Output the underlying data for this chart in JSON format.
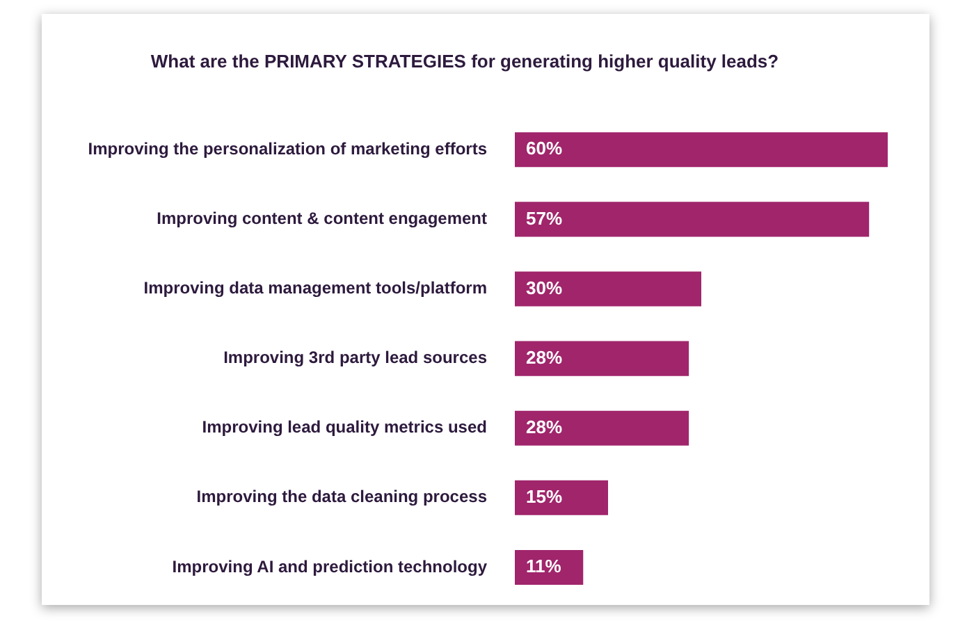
{
  "chart_data": {
    "type": "bar",
    "orientation": "horizontal",
    "title": "What are the PRIMARY STRATEGIES for generating higher quality leads?",
    "categories": [
      "Improving the personalization of marketing efforts",
      "Improving content & content engagement",
      "Improving data management tools/platform",
      "Improving 3rd party lead sources",
      "Improving lead quality metrics used",
      "Improving the data cleaning process",
      "Improving AI and prediction technology"
    ],
    "values": [
      60,
      57,
      30,
      28,
      28,
      15,
      11
    ],
    "value_labels": [
      "60%",
      "57%",
      "30%",
      "28%",
      "28%",
      "15%",
      "11%"
    ],
    "color": "#a0256b"
  }
}
